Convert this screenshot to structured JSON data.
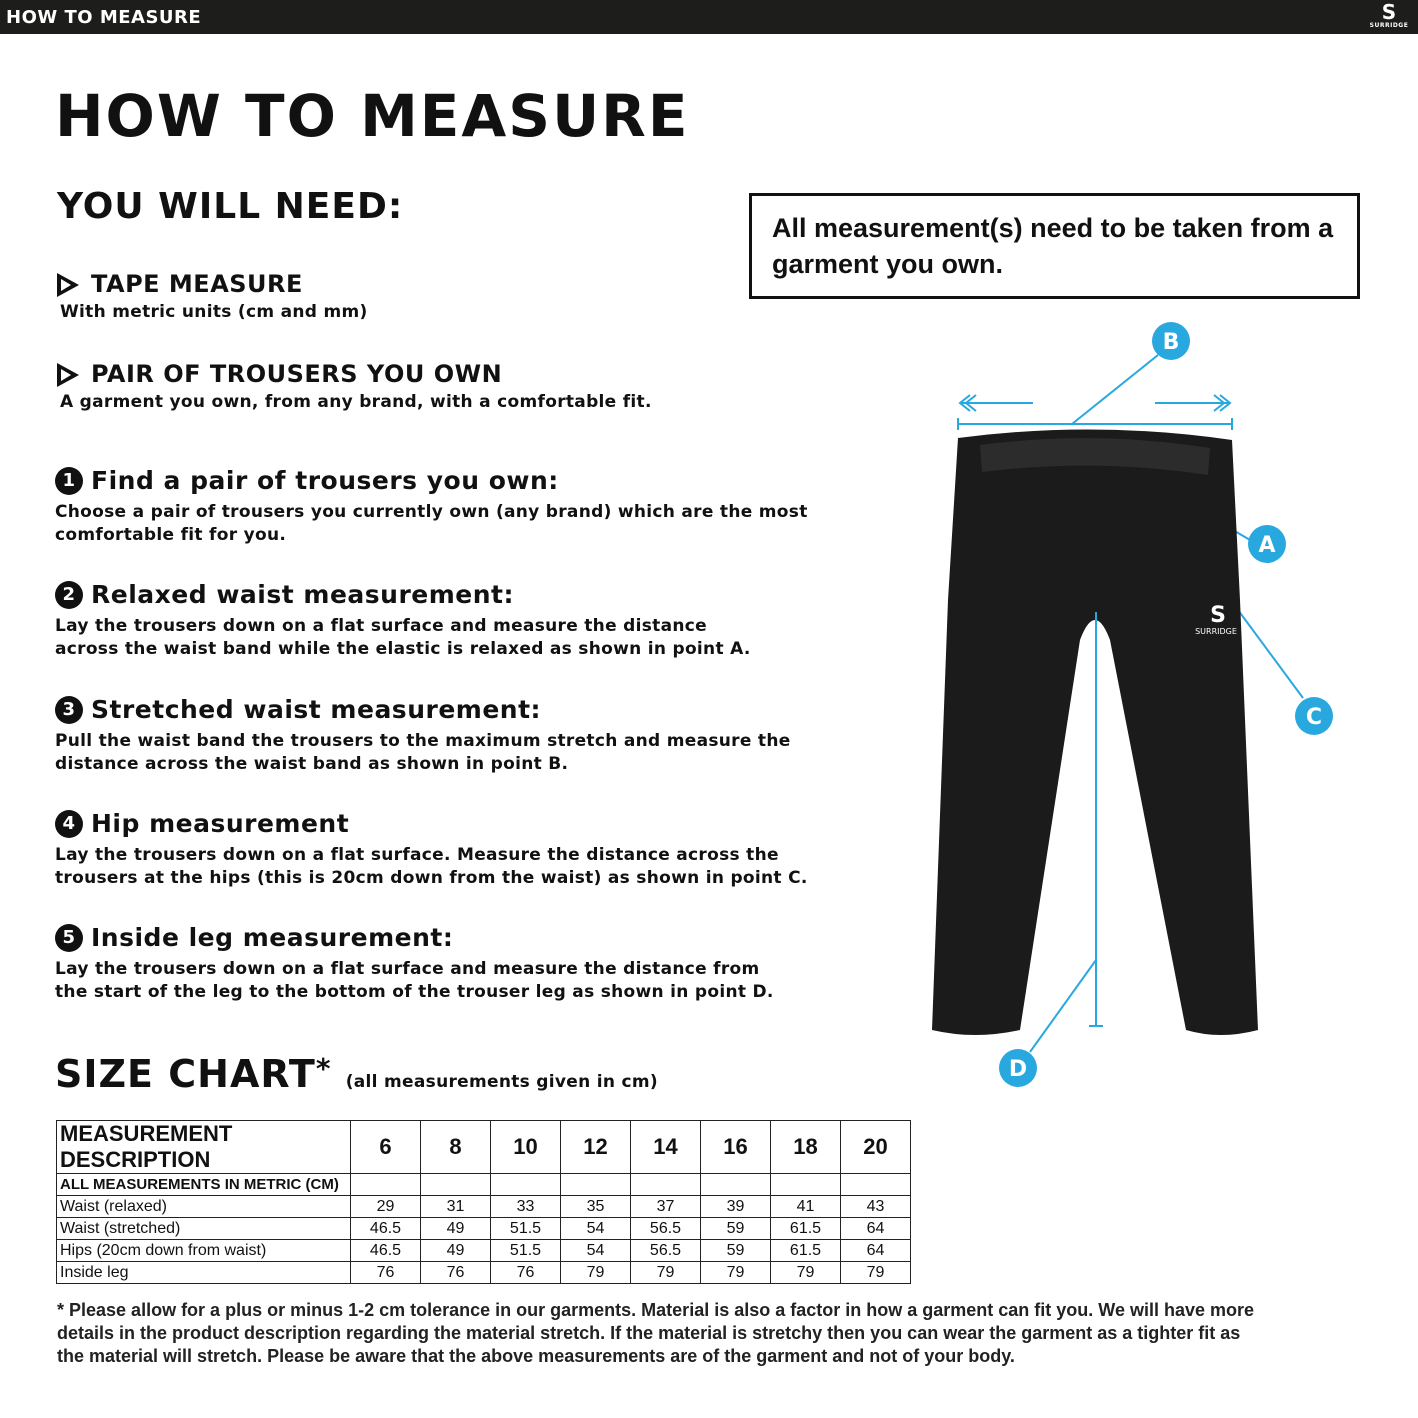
{
  "header": {
    "title": "HOW TO MEASURE",
    "logo_text": "SURRIDGE"
  },
  "page_title": "HOW TO MEASURE",
  "need": {
    "title": "YOU WILL NEED:",
    "items": [
      {
        "title": "TAPE MEASURE",
        "desc": "With metric units (cm and mm)"
      },
      {
        "title": "PAIR OF TROUSERS YOU OWN",
        "desc": "A garment you own, from any brand, with a comfortable fit."
      }
    ]
  },
  "note": "All measurement(s) need to be taken from a garment you own.",
  "steps": [
    {
      "num": "1",
      "title": "Find a pair of trousers you own:",
      "desc": "Choose a pair of trousers you currently own (any brand) which are the most comfortable fit for you."
    },
    {
      "num": "2",
      "title": "Relaxed waist measurement:",
      "desc": "Lay the trousers down on a flat surface and measure the distance across the waist band while the elastic is relaxed as shown in point A."
    },
    {
      "num": "3",
      "title": "Stretched waist measurement:",
      "desc": "Pull the waist band the trousers to the maximum stretch and measure the distance across the waist band as shown in point B."
    },
    {
      "num": "4",
      "title": "Hip measurement",
      "desc": "Lay the trousers down on a flat surface. Measure the distance across the trousers at the hips (this is 20cm down from the waist) as shown in point C."
    },
    {
      "num": "5",
      "title": "Inside leg measurement:",
      "desc": "Lay the trousers down on a flat surface and measure the distance from the start of the leg to the bottom of the trouser leg as shown in point D."
    }
  ],
  "diagram": {
    "labels": [
      "A",
      "B",
      "C",
      "D"
    ],
    "garment_logo": "SURRIDGE",
    "accent": "#29a8e0"
  },
  "size_chart": {
    "title": "SIZE CHART",
    "asterisk": "*",
    "subtitle": "(all measurements given in cm)",
    "header": "MEASUREMENT DESCRIPTION",
    "sizes": [
      "6",
      "8",
      "10",
      "12",
      "14",
      "16",
      "18",
      "20"
    ],
    "subheader": "ALL MEASUREMENTS IN METRIC (CM)",
    "rows": [
      {
        "label": "Waist (relaxed)",
        "values": [
          "29",
          "31",
          "33",
          "35",
          "37",
          "39",
          "41",
          "43"
        ]
      },
      {
        "label": "Waist (stretched)",
        "values": [
          "46.5",
          "49",
          "51.5",
          "54",
          "56.5",
          "59",
          "61.5",
          "64"
        ]
      },
      {
        "label": "Hips (20cm down from waist)",
        "values": [
          "46.5",
          "49",
          "51.5",
          "54",
          "56.5",
          "59",
          "61.5",
          "64"
        ]
      },
      {
        "label": "Inside leg",
        "values": [
          "76",
          "76",
          "76",
          "79",
          "79",
          "79",
          "79",
          "79"
        ]
      }
    ]
  },
  "footnote": "* Please allow for a plus or minus 1-2 cm tolerance in our garments. Material is also a factor in how a garment can fit you. We will have more details in the product description regarding the material stretch.  If the material is stretchy then you can wear the garment as a tighter fit as the material will stretch.  Please be aware that the above measurements are of the garment and not of your body."
}
